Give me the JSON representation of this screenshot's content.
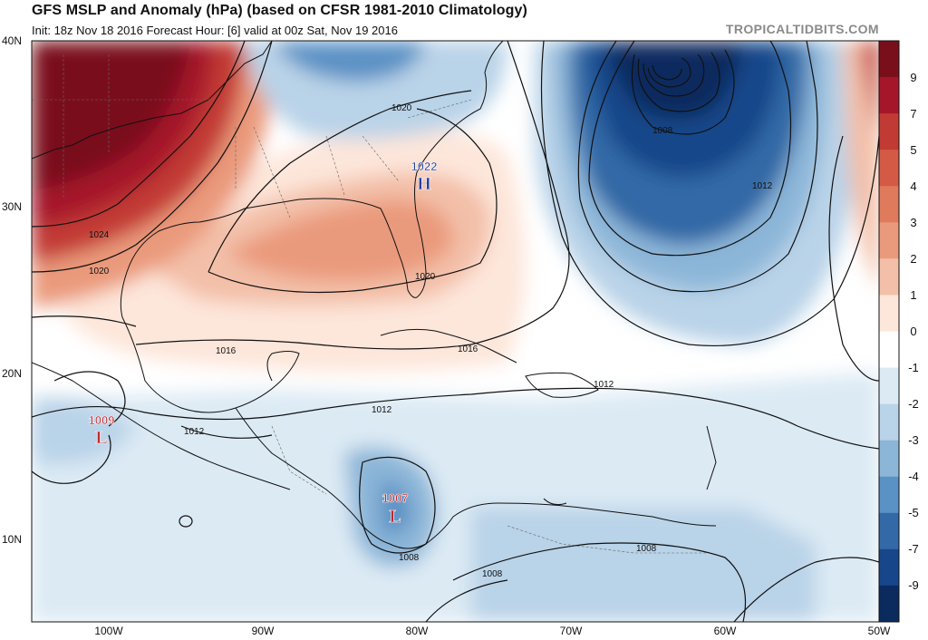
{
  "header": {
    "title": "GFS MSLP and Anomaly (hPa) (based on CFSR 1981-2010 Climatology)",
    "subtitle": "Init: 18z Nov 18 2016   Forecast Hour: [6]   valid at 00z Sat, Nov 19 2016",
    "watermark": "TROPICALTIDBITS.COM"
  },
  "map": {
    "lat_labels": [
      "40N",
      "30N",
      "20N",
      "10N"
    ],
    "lon_labels": [
      "100W",
      "90W",
      "80W",
      "70W",
      "60W",
      "50W"
    ],
    "pressure_centers": [
      {
        "type": "H",
        "value": "1022",
        "color": "#1f3fa0"
      },
      {
        "type": "L",
        "value": "1009",
        "color": "#c0282a"
      },
      {
        "type": "L",
        "value": "1007",
        "color": "#c0282a"
      }
    ],
    "isobar_labels": [
      "1024",
      "1020",
      "1020",
      "1020",
      "1016",
      "1016",
      "1012",
      "1012",
      "1012",
      "1012",
      "1008",
      "1008",
      "1008",
      "1008"
    ]
  },
  "colorbar": {
    "labels": [
      "9",
      "7",
      "5",
      "4",
      "3",
      "2",
      "1",
      "0",
      "-1",
      "-2",
      "-3",
      "-4",
      "-5",
      "-7",
      "-9"
    ],
    "colors": [
      "#7a0f1c",
      "#a6162a",
      "#c23a34",
      "#d45a45",
      "#e07a5c",
      "#ea9a7c",
      "#f3bfa8",
      "#fde6da",
      "#ffffff",
      "#dceaf4",
      "#b9d3e8",
      "#8cb6d8",
      "#5b92c5",
      "#3269a6",
      "#17468a",
      "#0b2a5e"
    ]
  }
}
